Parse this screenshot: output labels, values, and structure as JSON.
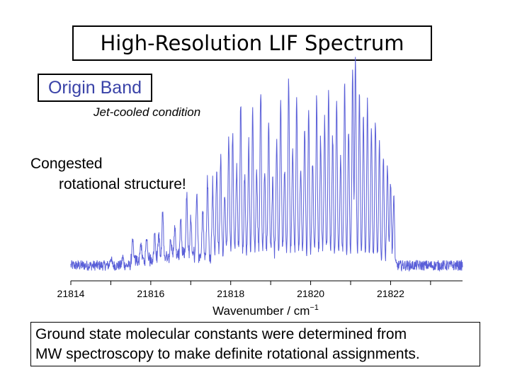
{
  "slide": {
    "title": "High-Resolution LIF Spectrum",
    "label_box": "Origin Band",
    "condition": "Jet-cooled condition",
    "annotation_line1": "Congested",
    "annotation_line2": "rotational structure!",
    "bottom_note_line1": "Ground state molecular constants were determined  from",
    "bottom_note_line2": "MW spectroscopy to make definite rotational assignments."
  },
  "colors": {
    "spectrum": "#5a5fd8",
    "text": "#000000",
    "label_box_text": "#3a43a8"
  },
  "chart_data": {
    "type": "line",
    "title": "High-Resolution LIF Spectrum",
    "xlabel": "Wavenumber / cm",
    "xlabel_sup": "−1",
    "ylabel": "",
    "xlim": [
      21814,
      21823.8
    ],
    "ylim": [
      0,
      1.0
    ],
    "xticks": [
      21814,
      21816,
      21818,
      21820,
      21822
    ],
    "xtick_labels": [
      "21814",
      "21816",
      "21818",
      "21820",
      "21822"
    ],
    "baseline": 0.05,
    "lines": [
      {
        "x": 21815.0,
        "h": 0.04
      },
      {
        "x": 21815.3,
        "h": 0.04
      },
      {
        "x": 21815.55,
        "h": 0.09
      },
      {
        "x": 21815.75,
        "h": 0.08
      },
      {
        "x": 21815.9,
        "h": 0.1
      },
      {
        "x": 21816.1,
        "h": 0.13
      },
      {
        "x": 21816.2,
        "h": 0.12
      },
      {
        "x": 21816.3,
        "h": 0.22
      },
      {
        "x": 21816.5,
        "h": 0.1
      },
      {
        "x": 21816.6,
        "h": 0.15
      },
      {
        "x": 21816.75,
        "h": 0.19
      },
      {
        "x": 21816.9,
        "h": 0.28
      },
      {
        "x": 21817.0,
        "h": 0.18
      },
      {
        "x": 21817.15,
        "h": 0.29
      },
      {
        "x": 21817.3,
        "h": 0.22
      },
      {
        "x": 21817.42,
        "h": 0.36
      },
      {
        "x": 21817.55,
        "h": 0.34
      },
      {
        "x": 21817.65,
        "h": 0.4
      },
      {
        "x": 21817.75,
        "h": 0.46
      },
      {
        "x": 21817.85,
        "h": 0.3
      },
      {
        "x": 21817.95,
        "h": 0.55
      },
      {
        "x": 21818.05,
        "h": 0.57
      },
      {
        "x": 21818.15,
        "h": 0.42
      },
      {
        "x": 21818.25,
        "h": 0.72
      },
      {
        "x": 21818.35,
        "h": 0.36
      },
      {
        "x": 21818.45,
        "h": 0.52
      },
      {
        "x": 21818.55,
        "h": 0.68
      },
      {
        "x": 21818.65,
        "h": 0.39
      },
      {
        "x": 21818.75,
        "h": 0.78
      },
      {
        "x": 21818.85,
        "h": 0.4
      },
      {
        "x": 21818.95,
        "h": 0.62
      },
      {
        "x": 21819.05,
        "h": 0.34
      },
      {
        "x": 21819.15,
        "h": 0.55
      },
      {
        "x": 21819.25,
        "h": 0.72
      },
      {
        "x": 21819.35,
        "h": 0.4
      },
      {
        "x": 21819.45,
        "h": 0.83
      },
      {
        "x": 21819.55,
        "h": 0.5
      },
      {
        "x": 21819.65,
        "h": 0.72
      },
      {
        "x": 21819.75,
        "h": 0.42
      },
      {
        "x": 21819.85,
        "h": 0.6
      },
      {
        "x": 21819.95,
        "h": 0.68
      },
      {
        "x": 21820.05,
        "h": 0.46
      },
      {
        "x": 21820.15,
        "h": 0.75
      },
      {
        "x": 21820.25,
        "h": 0.56
      },
      {
        "x": 21820.35,
        "h": 0.64
      },
      {
        "x": 21820.45,
        "h": 0.78
      },
      {
        "x": 21820.55,
        "h": 0.58
      },
      {
        "x": 21820.65,
        "h": 0.72
      },
      {
        "x": 21820.75,
        "h": 0.47
      },
      {
        "x": 21820.85,
        "h": 0.82
      },
      {
        "x": 21820.95,
        "h": 0.62
      },
      {
        "x": 21821.05,
        "h": 0.88
      },
      {
        "x": 21821.12,
        "h": 0.95
      },
      {
        "x": 21821.22,
        "h": 0.78
      },
      {
        "x": 21821.32,
        "h": 0.68
      },
      {
        "x": 21821.42,
        "h": 0.74
      },
      {
        "x": 21821.52,
        "h": 0.62
      },
      {
        "x": 21821.62,
        "h": 0.66
      },
      {
        "x": 21821.72,
        "h": 0.56
      },
      {
        "x": 21821.82,
        "h": 0.5
      },
      {
        "x": 21821.92,
        "h": 0.45
      },
      {
        "x": 21822.0,
        "h": 0.38
      },
      {
        "x": 21822.08,
        "h": 0.3
      }
    ]
  }
}
